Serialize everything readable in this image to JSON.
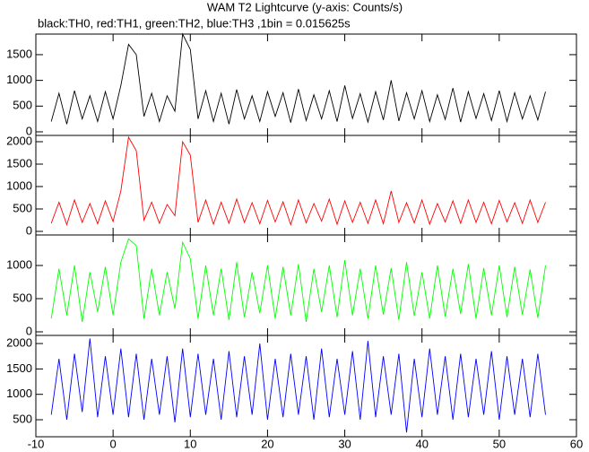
{
  "chart_data": [
    {
      "type": "line",
      "title": "WAM T2 Lightcurve (y-axis: Counts/s)",
      "subtitle": "black:TH0, red:TH1, green:TH2, blue:TH3 ,1bin = 0.015625s",
      "x": [
        -8,
        -7,
        -6,
        -5,
        -4,
        -3,
        -2,
        -1,
        0,
        1,
        2,
        3,
        4,
        5,
        6,
        7,
        8,
        9,
        10,
        11,
        12,
        13,
        14,
        15,
        16,
        17,
        18,
        19,
        20,
        21,
        22,
        23,
        24,
        25,
        26,
        27,
        28,
        29,
        30,
        31,
        32,
        33,
        34,
        35,
        36,
        37,
        38,
        39,
        40,
        41,
        42,
        43,
        44,
        45,
        46,
        47,
        48,
        49,
        50,
        51,
        52,
        53,
        54,
        55,
        56
      ],
      "series": [
        {
          "color": "#000000",
          "values": [
            200,
            750,
            150,
            800,
            250,
            700,
            200,
            780,
            250,
            900,
            1700,
            1500,
            300,
            750,
            200,
            700,
            400,
            1900,
            1600,
            250,
            800,
            200,
            750,
            150,
            820,
            250,
            700,
            200,
            780,
            300,
            760,
            180,
            830,
            220,
            720,
            250,
            800,
            200,
            900,
            260,
            740,
            190,
            780,
            230,
            1000,
            210,
            760,
            250,
            800,
            200,
            720,
            240,
            850,
            190,
            780,
            260,
            740,
            220,
            800,
            200,
            760,
            250,
            700,
            230,
            780
          ]
        }
      ],
      "xlim": [
        -10,
        60
      ],
      "xticks": [
        -10,
        0,
        10,
        20,
        30,
        40,
        50,
        60
      ],
      "ylim": [
        -70,
        1900
      ],
      "yticks": [
        0,
        500,
        1000,
        1500
      ]
    },
    {
      "type": "line",
      "x": [
        -8,
        -7,
        -6,
        -5,
        -4,
        -3,
        -2,
        -1,
        0,
        1,
        2,
        3,
        4,
        5,
        6,
        7,
        8,
        9,
        10,
        11,
        12,
        13,
        14,
        15,
        16,
        17,
        18,
        19,
        20,
        21,
        22,
        23,
        24,
        25,
        26,
        27,
        28,
        29,
        30,
        31,
        32,
        33,
        34,
        35,
        36,
        37,
        38,
        39,
        40,
        41,
        42,
        43,
        44,
        45,
        46,
        47,
        48,
        49,
        50,
        51,
        52,
        53,
        54,
        55,
        56
      ],
      "series": [
        {
          "color": "#ff0000",
          "values": [
            180,
            650,
            150,
            700,
            200,
            620,
            170,
            680,
            220,
            900,
            2100,
            1800,
            250,
            650,
            180,
            600,
            350,
            2000,
            1700,
            200,
            700,
            160,
            650,
            180,
            720,
            200,
            640,
            170,
            690,
            210,
            660,
            150,
            700,
            190,
            620,
            230,
            720,
            160,
            680,
            200,
            650,
            180,
            700,
            170,
            900,
            200,
            640,
            190,
            700,
            160,
            620,
            210,
            680,
            180,
            700,
            200,
            650,
            170,
            690,
            210,
            640,
            180,
            700,
            200,
            650
          ]
        }
      ],
      "xlim": [
        -10,
        60
      ],
      "xticks": [
        -10,
        0,
        10,
        20,
        30,
        40,
        50,
        60
      ],
      "ylim": [
        -80,
        2140
      ],
      "yticks": [
        0,
        500,
        1000,
        1500,
        2000
      ]
    },
    {
      "type": "line",
      "x": [
        -8,
        -7,
        -6,
        -5,
        -4,
        -3,
        -2,
        -1,
        0,
        1,
        2,
        3,
        4,
        5,
        6,
        7,
        8,
        9,
        10,
        11,
        12,
        13,
        14,
        15,
        16,
        17,
        18,
        19,
        20,
        21,
        22,
        23,
        24,
        25,
        26,
        27,
        28,
        29,
        30,
        31,
        32,
        33,
        34,
        35,
        36,
        37,
        38,
        39,
        40,
        41,
        42,
        43,
        44,
        45,
        46,
        47,
        48,
        49,
        50,
        51,
        52,
        53,
        54,
        55,
        56
      ],
      "series": [
        {
          "color": "#00ff00",
          "values": [
            200,
            950,
            250,
            1000,
            150,
            900,
            300,
            980,
            250,
            1050,
            1400,
            1300,
            200,
            950,
            250,
            900,
            350,
            1350,
            1100,
            200,
            1000,
            250,
            950,
            180,
            1050,
            220,
            900,
            280,
            1000,
            200,
            980,
            250,
            1020,
            150,
            950,
            300,
            1000,
            220,
            1080,
            250,
            950,
            200,
            1000,
            260,
            960,
            180,
            1050,
            240,
            900,
            200,
            1000,
            230,
            950,
            270,
            1020,
            200,
            960,
            250,
            1000,
            220,
            980,
            260,
            940,
            210,
            1000
          ]
        }
      ],
      "xlim": [
        -10,
        60
      ],
      "xticks": [
        -10,
        0,
        10,
        20,
        30,
        40,
        50,
        60
      ],
      "ylim": [
        -54,
        1460
      ],
      "yticks": [
        0,
        500,
        1000
      ]
    },
    {
      "type": "line",
      "x": [
        -8,
        -7,
        -6,
        -5,
        -4,
        -3,
        -2,
        -1,
        0,
        1,
        2,
        3,
        4,
        5,
        6,
        7,
        8,
        9,
        10,
        11,
        12,
        13,
        14,
        15,
        16,
        17,
        18,
        19,
        20,
        21,
        22,
        23,
        24,
        25,
        26,
        27,
        28,
        29,
        30,
        31,
        32,
        33,
        34,
        35,
        36,
        37,
        38,
        39,
        40,
        41,
        42,
        43,
        44,
        45,
        46,
        47,
        48,
        49,
        50,
        51,
        52,
        53,
        54,
        55,
        56
      ],
      "series": [
        {
          "color": "#0000ff",
          "values": [
            600,
            1700,
            500,
            1800,
            650,
            2100,
            550,
            1750,
            600,
            1900,
            550,
            1800,
            500,
            1700,
            600,
            1750,
            450,
            1900,
            550,
            1800,
            600,
            1700,
            500,
            1850,
            550,
            1750,
            600,
            2000,
            500,
            1700,
            550,
            1800,
            600,
            1750,
            500,
            1900,
            550,
            1700,
            600,
            1850,
            500,
            2050,
            550,
            1750,
            600,
            1800,
            250,
            1700,
            550,
            1900,
            600,
            1750,
            500,
            1800,
            550,
            1700,
            600,
            1850,
            500,
            1750,
            600,
            1700,
            550,
            1800,
            600
          ]
        }
      ],
      "xlim": [
        -10,
        60
      ],
      "xticks": [
        -10,
        0,
        10,
        20,
        30,
        40,
        50,
        60
      ],
      "ylim": [
        165,
        2160
      ],
      "yticks": [
        500,
        1000,
        1500,
        2000
      ]
    }
  ]
}
